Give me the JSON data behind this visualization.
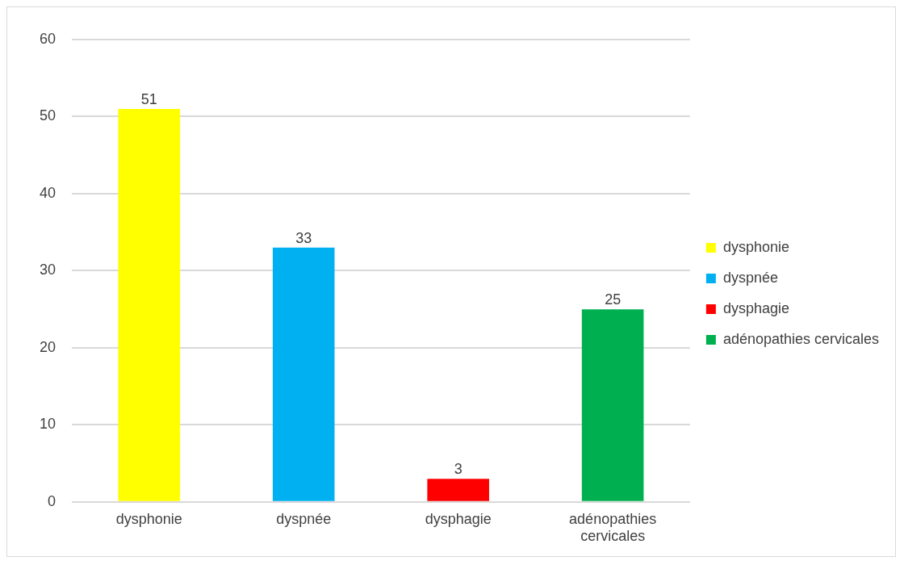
{
  "chart_data": {
    "type": "bar",
    "categories": [
      "dysphonie",
      "dyspnée",
      "dysphagie",
      "adénopathies cervicales"
    ],
    "series": [
      {
        "name": "dysphonie",
        "color": "#ffff00",
        "values": [
          51,
          null,
          null,
          null
        ]
      },
      {
        "name": "dyspnée",
        "color": "#00b0f0",
        "values": [
          null,
          33,
          null,
          null
        ]
      },
      {
        "name": "dysphagie",
        "color": "#ff0000",
        "values": [
          null,
          null,
          3,
          null
        ]
      },
      {
        "name": "adénopathies cervicales",
        "color": "#00b050",
        "values": [
          null,
          null,
          null,
          25
        ]
      }
    ],
    "ylim": [
      0,
      60
    ],
    "yticks": [
      0,
      10,
      20,
      30,
      40,
      50,
      60
    ],
    "grid": "y",
    "legend": "right",
    "data_labels": true
  }
}
